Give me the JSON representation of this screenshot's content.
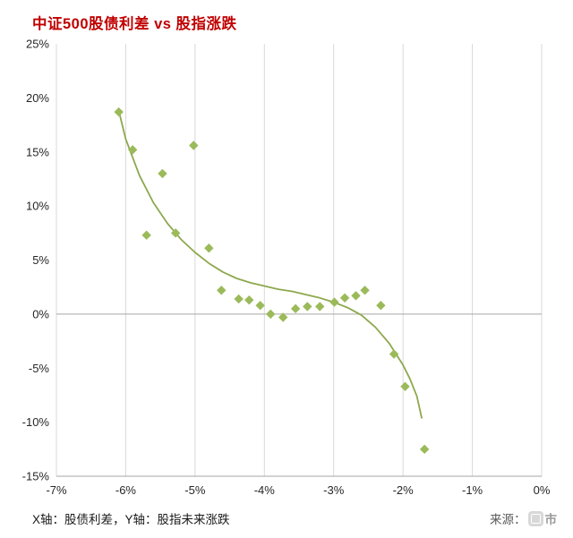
{
  "title": "中证500股债利差 vs 股指涨跌",
  "footer": {
    "axis_note": "X轴：股债利差，Y轴：股指未来涨跌",
    "source_prefix": "来源：",
    "source_watermark": "市"
  },
  "chart_data": {
    "type": "scatter",
    "title": "中证500股债利差 vs 股指涨跌",
    "xlabel": "股债利差",
    "ylabel": "股指未来涨跌",
    "xlim": [
      -7,
      0
    ],
    "ylim": [
      -15,
      25
    ],
    "x_tick_labels": [
      "-7%",
      "-6%",
      "-5%",
      "-4%",
      "-3%",
      "-2%",
      "-1%",
      "0%"
    ],
    "y_tick_labels": [
      "25%",
      "20%",
      "15%",
      "10%",
      "5%",
      "0%",
      "-5%",
      "-10%",
      "-15%"
    ],
    "grid": "vertical-only",
    "point_color": "#9bba59",
    "line_color": "#8da84e",
    "grid_color": "#d9d9d9",
    "axis_line_color": "#a6a6a6",
    "points": [
      [
        -6.1,
        18.7
      ],
      [
        -5.9,
        15.2
      ],
      [
        -5.7,
        7.3
      ],
      [
        -5.47,
        13.0
      ],
      [
        -5.28,
        7.5
      ],
      [
        -5.02,
        15.6
      ],
      [
        -4.8,
        6.1
      ],
      [
        -4.62,
        2.2
      ],
      [
        -4.37,
        1.4
      ],
      [
        -4.22,
        1.3
      ],
      [
        -4.06,
        0.8
      ],
      [
        -3.91,
        0.0
      ],
      [
        -3.73,
        -0.3
      ],
      [
        -3.55,
        0.5
      ],
      [
        -3.38,
        0.7
      ],
      [
        -3.2,
        0.7
      ],
      [
        -2.99,
        1.1
      ],
      [
        -2.84,
        1.5
      ],
      [
        -2.68,
        1.7
      ],
      [
        -2.55,
        2.2
      ],
      [
        -2.32,
        0.8
      ],
      [
        -2.13,
        -3.7
      ],
      [
        -1.97,
        -6.7
      ],
      [
        -1.69,
        -12.5
      ]
    ],
    "trend": [
      [
        -6.1,
        18.8
      ],
      [
        -6.0,
        16.2
      ],
      [
        -5.8,
        12.8
      ],
      [
        -5.6,
        10.3
      ],
      [
        -5.4,
        8.4
      ],
      [
        -5.2,
        6.9
      ],
      [
        -5.0,
        5.7
      ],
      [
        -4.8,
        4.7
      ],
      [
        -4.6,
        3.9
      ],
      [
        -4.4,
        3.3
      ],
      [
        -4.2,
        2.9
      ],
      [
        -4.0,
        2.6
      ],
      [
        -3.8,
        2.3
      ],
      [
        -3.6,
        2.1
      ],
      [
        -3.4,
        1.8
      ],
      [
        -3.2,
        1.5
      ],
      [
        -3.0,
        1.1
      ],
      [
        -2.8,
        0.6
      ],
      [
        -2.6,
        -0.1
      ],
      [
        -2.4,
        -1.2
      ],
      [
        -2.2,
        -2.7
      ],
      [
        -2.0,
        -4.7
      ],
      [
        -1.9,
        -6.0
      ],
      [
        -1.8,
        -7.6
      ],
      [
        -1.73,
        -9.6
      ]
    ]
  }
}
